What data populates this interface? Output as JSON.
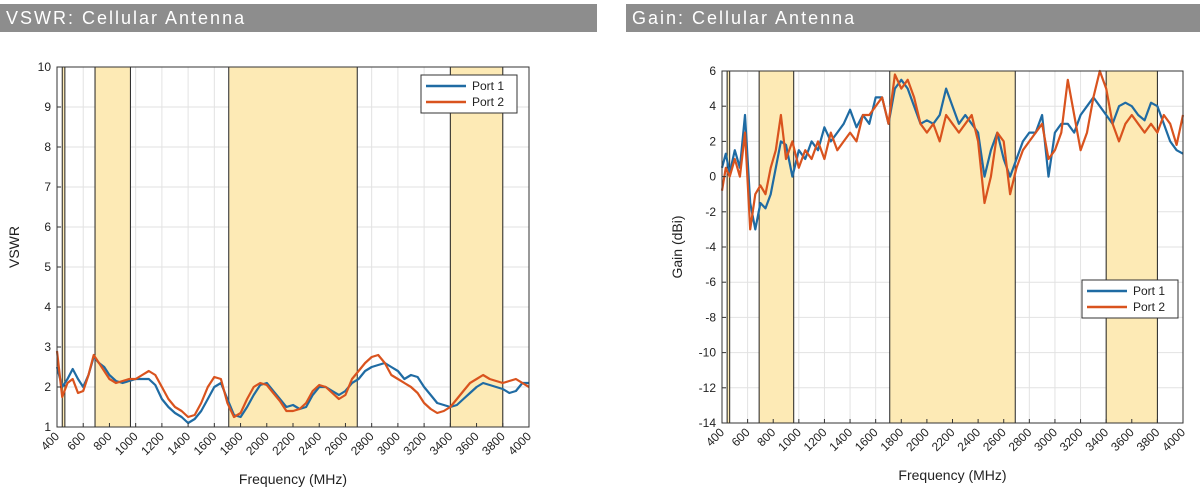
{
  "chart_data": [
    {
      "type": "line",
      "title": "VSWR: Cellular Antenna",
      "xlabel": "Frequency (MHz)",
      "ylabel": "VSWR",
      "xlim": [
        400,
        4000
      ],
      "ylim": [
        1,
        10
      ],
      "xticks": [
        400,
        600,
        800,
        1000,
        1200,
        1400,
        1600,
        1800,
        2000,
        2200,
        2400,
        2600,
        2800,
        3000,
        3200,
        3400,
        3600,
        3800,
        4000
      ],
      "yticks": [
        1,
        2,
        3,
        4,
        5,
        6,
        7,
        8,
        9,
        10
      ],
      "grid": true,
      "legend_position": "top-right",
      "bands": [
        [
          440,
          460
        ],
        [
          690,
          960
        ],
        [
          1710,
          2690
        ],
        [
          3400,
          3800
        ]
      ],
      "band_color": "#fdeab5",
      "series": [
        {
          "name": "Port 1",
          "color": "#1f6ba3",
          "x": [
            400,
            440,
            480,
            520,
            560,
            600,
            640,
            680,
            720,
            760,
            800,
            850,
            900,
            950,
            1000,
            1050,
            1100,
            1150,
            1200,
            1250,
            1300,
            1350,
            1400,
            1450,
            1500,
            1550,
            1600,
            1650,
            1700,
            1750,
            1800,
            1850,
            1900,
            1950,
            2000,
            2050,
            2100,
            2150,
            2200,
            2250,
            2300,
            2350,
            2400,
            2450,
            2500,
            2550,
            2600,
            2650,
            2700,
            2750,
            2800,
            2850,
            2900,
            2950,
            3000,
            3050,
            3100,
            3150,
            3200,
            3250,
            3300,
            3350,
            3400,
            3450,
            3500,
            3550,
            3600,
            3650,
            3700,
            3750,
            3800,
            3850,
            3900,
            3950,
            4000
          ],
          "y": [
            2.5,
            2.0,
            2.2,
            2.45,
            2.2,
            2.0,
            2.3,
            2.75,
            2.6,
            2.5,
            2.3,
            2.15,
            2.1,
            2.15,
            2.2,
            2.2,
            2.2,
            2.05,
            1.7,
            1.5,
            1.35,
            1.25,
            1.1,
            1.2,
            1.4,
            1.7,
            2.0,
            2.1,
            1.7,
            1.3,
            1.25,
            1.5,
            1.8,
            2.05,
            2.1,
            1.9,
            1.7,
            1.5,
            1.55,
            1.45,
            1.5,
            1.8,
            2.0,
            2.0,
            1.9,
            1.8,
            1.9,
            2.1,
            2.2,
            2.4,
            2.5,
            2.55,
            2.6,
            2.5,
            2.4,
            2.2,
            2.3,
            2.25,
            2.0,
            1.8,
            1.6,
            1.55,
            1.5,
            1.55,
            1.7,
            1.85,
            2.0,
            2.1,
            2.05,
            2.0,
            1.95,
            1.85,
            1.9,
            2.1,
            2.1
          ]
        },
        {
          "name": "Port 2",
          "color": "#d9531e",
          "x": [
            400,
            440,
            480,
            520,
            560,
            600,
            640,
            680,
            720,
            760,
            800,
            850,
            900,
            950,
            1000,
            1050,
            1100,
            1150,
            1200,
            1250,
            1300,
            1350,
            1400,
            1450,
            1500,
            1550,
            1600,
            1650,
            1700,
            1750,
            1800,
            1850,
            1900,
            1950,
            2000,
            2050,
            2100,
            2150,
            2200,
            2250,
            2300,
            2350,
            2400,
            2450,
            2500,
            2550,
            2600,
            2650,
            2700,
            2750,
            2800,
            2850,
            2900,
            2950,
            3000,
            3050,
            3100,
            3150,
            3200,
            3250,
            3300,
            3350,
            3400,
            3450,
            3500,
            3550,
            3600,
            3650,
            3700,
            3750,
            3800,
            3850,
            3900,
            3950,
            4000
          ],
          "y": [
            2.9,
            1.75,
            2.1,
            2.2,
            1.85,
            1.9,
            2.3,
            2.8,
            2.6,
            2.4,
            2.2,
            2.1,
            2.15,
            2.2,
            2.2,
            2.3,
            2.4,
            2.3,
            2.0,
            1.7,
            1.5,
            1.4,
            1.25,
            1.3,
            1.6,
            2.0,
            2.25,
            2.2,
            1.6,
            1.25,
            1.35,
            1.7,
            2.0,
            2.1,
            2.05,
            1.85,
            1.65,
            1.4,
            1.4,
            1.45,
            1.6,
            1.9,
            2.05,
            2.0,
            1.85,
            1.7,
            1.8,
            2.2,
            2.4,
            2.6,
            2.75,
            2.8,
            2.6,
            2.3,
            2.2,
            2.1,
            2.0,
            1.85,
            1.6,
            1.45,
            1.35,
            1.4,
            1.5,
            1.7,
            1.9,
            2.1,
            2.2,
            2.3,
            2.2,
            2.15,
            2.1,
            2.15,
            2.2,
            2.1,
            2.0
          ]
        }
      ]
    },
    {
      "type": "line",
      "title": "Gain: Cellular Antenna",
      "xlabel": "Frequency (MHz)",
      "ylabel": "Gain (dBi)",
      "xlim": [
        400,
        4000
      ],
      "ylim": [
        -14,
        6
      ],
      "xticks": [
        400,
        600,
        800,
        1000,
        1200,
        1400,
        1600,
        1800,
        2000,
        2200,
        2400,
        2600,
        2800,
        3000,
        3200,
        3400,
        3600,
        3800,
        4000
      ],
      "yticks": [
        -14,
        -12,
        -10,
        -8,
        -6,
        -4,
        -2,
        0,
        2,
        4,
        6
      ],
      "grid": true,
      "legend_position": "right",
      "bands": [
        [
          440,
          460
        ],
        [
          690,
          960
        ],
        [
          1710,
          2690
        ],
        [
          3400,
          3800
        ]
      ],
      "band_color": "#fdeab5",
      "series": [
        {
          "name": "Port 1",
          "color": "#1f6ba3",
          "x": [
            400,
            430,
            460,
            500,
            540,
            580,
            620,
            660,
            700,
            740,
            780,
            820,
            860,
            900,
            950,
            1000,
            1050,
            1100,
            1150,
            1200,
            1250,
            1300,
            1350,
            1400,
            1450,
            1500,
            1550,
            1600,
            1650,
            1700,
            1750,
            1800,
            1850,
            1900,
            1950,
            2000,
            2050,
            2100,
            2150,
            2200,
            2250,
            2300,
            2350,
            2400,
            2450,
            2500,
            2550,
            2600,
            2650,
            2700,
            2750,
            2800,
            2850,
            2900,
            2950,
            3000,
            3050,
            3100,
            3150,
            3200,
            3250,
            3300,
            3350,
            3400,
            3450,
            3500,
            3550,
            3600,
            3650,
            3700,
            3750,
            3800,
            3850,
            3900,
            3950,
            4000
          ],
          "y": [
            0.5,
            1.3,
            0.2,
            1.5,
            0.5,
            3.5,
            -1.5,
            -3.0,
            -1.5,
            -1.8,
            -1.0,
            0.5,
            2.0,
            1.8,
            0.0,
            1.5,
            1.0,
            2.0,
            1.5,
            2.8,
            2.0,
            2.5,
            3.0,
            3.8,
            2.8,
            3.5,
            3.0,
            4.5,
            4.5,
            3.0,
            5.0,
            5.5,
            5.0,
            4.0,
            3.0,
            3.2,
            3.0,
            3.5,
            5.0,
            4.0,
            3.0,
            3.5,
            3.0,
            2.5,
            0.0,
            1.5,
            2.5,
            1.0,
            0.0,
            1.0,
            2.0,
            2.5,
            2.5,
            3.5,
            0.0,
            2.5,
            3.0,
            3.0,
            2.5,
            3.5,
            4.0,
            4.5,
            4.0,
            3.5,
            3.0,
            4.0,
            4.2,
            4.0,
            3.5,
            3.2,
            4.2,
            4.0,
            3.0,
            2.0,
            1.5,
            1.3
          ]
        },
        {
          "name": "Port 2",
          "color": "#d9531e",
          "x": [
            400,
            430,
            460,
            500,
            540,
            580,
            620,
            660,
            700,
            740,
            780,
            820,
            860,
            900,
            950,
            1000,
            1050,
            1100,
            1150,
            1200,
            1250,
            1300,
            1350,
            1400,
            1450,
            1500,
            1550,
            1600,
            1650,
            1700,
            1750,
            1800,
            1850,
            1900,
            1950,
            2000,
            2050,
            2100,
            2150,
            2200,
            2250,
            2300,
            2350,
            2400,
            2450,
            2500,
            2550,
            2600,
            2650,
            2700,
            2750,
            2800,
            2850,
            2900,
            2950,
            3000,
            3050,
            3100,
            3150,
            3200,
            3250,
            3300,
            3350,
            3400,
            3450,
            3500,
            3550,
            3600,
            3650,
            3700,
            3750,
            3800,
            3850,
            3900,
            3950,
            4000
          ],
          "y": [
            -0.8,
            0.5,
            0.0,
            1.0,
            0.0,
            2.5,
            -3.0,
            -1.0,
            -0.5,
            -1.0,
            0.5,
            1.5,
            3.5,
            1.0,
            2.0,
            0.5,
            1.5,
            1.0,
            2.0,
            1.0,
            2.5,
            1.5,
            2.0,
            2.5,
            2.0,
            3.5,
            3.5,
            4.0,
            4.5,
            3.0,
            5.8,
            5.0,
            5.5,
            4.5,
            3.0,
            2.5,
            3.0,
            2.0,
            3.5,
            3.0,
            2.5,
            3.0,
            3.5,
            2.0,
            -1.5,
            0.0,
            2.5,
            2.0,
            -1.0,
            0.5,
            1.5,
            2.0,
            2.5,
            3.0,
            1.0,
            1.5,
            2.5,
            5.5,
            3.5,
            1.5,
            2.5,
            4.5,
            6.0,
            5.0,
            3.0,
            2.0,
            3.0,
            3.5,
            3.0,
            2.5,
            3.0,
            2.5,
            3.5,
            3.0,
            1.8,
            3.5
          ]
        }
      ]
    }
  ]
}
